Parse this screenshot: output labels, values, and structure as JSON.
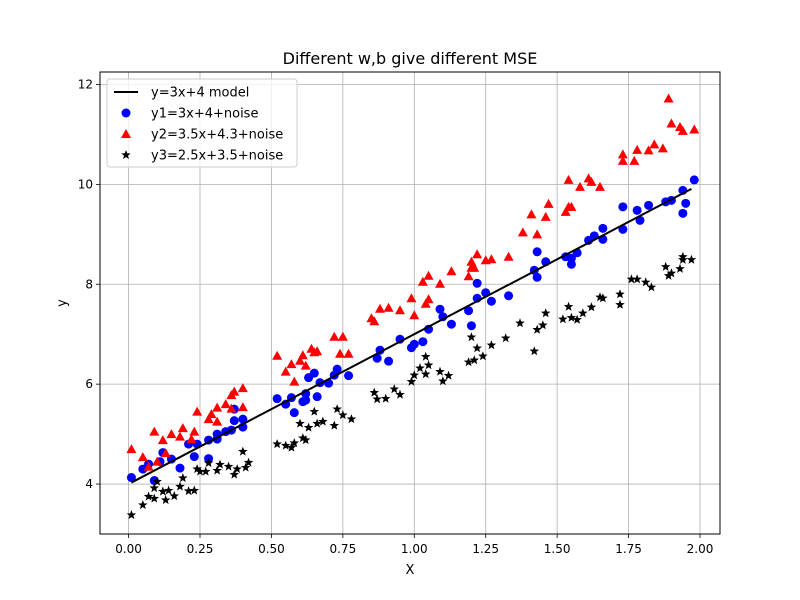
{
  "chart_data": {
    "type": "scatter",
    "title": "Different w,b give different MSE",
    "xlabel": "X",
    "ylabel": "y",
    "xlim": [
      -0.1,
      2.07
    ],
    "ylim": [
      3.0,
      12.25
    ],
    "grid": true,
    "legend_position": "top-left",
    "x_ticks": [
      "0.00",
      "0.25",
      "0.50",
      "0.75",
      "1.00",
      "1.25",
      "1.50",
      "1.75",
      "2.00"
    ],
    "y_ticks": [
      "4",
      "6",
      "8",
      "10",
      "12"
    ],
    "series": [
      {
        "name": "y=3x+4 model",
        "kind": "line",
        "color": "#000000",
        "x": [
          0.01,
          1.97
        ],
        "y": [
          4.03,
          9.91
        ]
      },
      {
        "name": "y1=3x+4+noise",
        "kind": "scatter",
        "marker": "circle",
        "color": "#0000ff",
        "points": [
          [
            0.01,
            4.13
          ],
          [
            0.05,
            4.3
          ],
          [
            0.07,
            4.4
          ],
          [
            0.09,
            4.07
          ],
          [
            0.11,
            4.45
          ],
          [
            0.12,
            4.63
          ],
          [
            0.15,
            4.5
          ],
          [
            0.18,
            4.32
          ],
          [
            0.21,
            4.8
          ],
          [
            0.23,
            4.55
          ],
          [
            0.24,
            4.8
          ],
          [
            0.28,
            4.51
          ],
          [
            0.28,
            4.88
          ],
          [
            0.31,
            4.9
          ],
          [
            0.31,
            5.0
          ],
          [
            0.34,
            5.05
          ],
          [
            0.36,
            5.08
          ],
          [
            0.37,
            5.27
          ],
          [
            0.37,
            5.5
          ],
          [
            0.4,
            5.14
          ],
          [
            0.4,
            5.3
          ],
          [
            0.52,
            5.71
          ],
          [
            0.55,
            5.6
          ],
          [
            0.57,
            5.73
          ],
          [
            0.58,
            5.43
          ],
          [
            0.61,
            5.65
          ],
          [
            0.62,
            5.81
          ],
          [
            0.62,
            5.68
          ],
          [
            0.63,
            6.13
          ],
          [
            0.65,
            6.22
          ],
          [
            0.66,
            5.75
          ],
          [
            0.67,
            6.03
          ],
          [
            0.7,
            6.02
          ],
          [
            0.72,
            6.18
          ],
          [
            0.73,
            6.3
          ],
          [
            0.77,
            6.17
          ],
          [
            0.87,
            6.52
          ],
          [
            0.88,
            6.68
          ],
          [
            0.91,
            6.46
          ],
          [
            0.95,
            6.9
          ],
          [
            0.99,
            6.73
          ],
          [
            1.0,
            6.8
          ],
          [
            1.03,
            6.85
          ],
          [
            1.05,
            7.1
          ],
          [
            1.09,
            7.5
          ],
          [
            1.1,
            7.35
          ],
          [
            1.13,
            7.2
          ],
          [
            1.19,
            7.47
          ],
          [
            1.2,
            7.17
          ],
          [
            1.22,
            8.02
          ],
          [
            1.22,
            7.72
          ],
          [
            1.25,
            7.83
          ],
          [
            1.27,
            7.66
          ],
          [
            1.33,
            7.77
          ],
          [
            1.42,
            8.28
          ],
          [
            1.43,
            8.14
          ],
          [
            1.43,
            8.65
          ],
          [
            1.46,
            8.45
          ],
          [
            1.53,
            8.55
          ],
          [
            1.55,
            8.52
          ],
          [
            1.55,
            8.4
          ],
          [
            1.57,
            8.63
          ],
          [
            1.61,
            8.88
          ],
          [
            1.63,
            8.97
          ],
          [
            1.66,
            9.12
          ],
          [
            1.66,
            8.9
          ],
          [
            1.73,
            9.55
          ],
          [
            1.73,
            9.1
          ],
          [
            1.78,
            9.48
          ],
          [
            1.79,
            9.28
          ],
          [
            1.82,
            9.58
          ],
          [
            1.88,
            9.65
          ],
          [
            1.9,
            9.68
          ],
          [
            1.94,
            9.42
          ],
          [
            1.94,
            9.88
          ],
          [
            1.95,
            9.62
          ],
          [
            1.98,
            10.09
          ]
        ]
      },
      {
        "name": "y2=3.5x+4.3+noise",
        "kind": "scatter",
        "marker": "triangle",
        "color": "#ff0000",
        "points": [
          [
            0.01,
            4.7
          ],
          [
            0.05,
            4.54
          ],
          [
            0.07,
            4.35
          ],
          [
            0.09,
            5.05
          ],
          [
            0.1,
            4.45
          ],
          [
            0.12,
            4.88
          ],
          [
            0.13,
            4.62
          ],
          [
            0.15,
            5.0
          ],
          [
            0.18,
            4.95
          ],
          [
            0.19,
            5.12
          ],
          [
            0.22,
            4.9
          ],
          [
            0.23,
            5.05
          ],
          [
            0.24,
            5.45
          ],
          [
            0.28,
            5.3
          ],
          [
            0.29,
            5.4
          ],
          [
            0.31,
            5.53
          ],
          [
            0.31,
            5.25
          ],
          [
            0.34,
            5.6
          ],
          [
            0.36,
            5.78
          ],
          [
            0.36,
            5.51
          ],
          [
            0.37,
            5.85
          ],
          [
            0.4,
            5.54
          ],
          [
            0.4,
            5.92
          ],
          [
            0.52,
            6.57
          ],
          [
            0.55,
            6.25
          ],
          [
            0.57,
            6.4
          ],
          [
            0.58,
            6.05
          ],
          [
            0.6,
            6.47
          ],
          [
            0.61,
            6.58
          ],
          [
            0.62,
            6.37
          ],
          [
            0.64,
            6.71
          ],
          [
            0.65,
            6.64
          ],
          [
            0.66,
            6.66
          ],
          [
            0.72,
            6.95
          ],
          [
            0.74,
            6.61
          ],
          [
            0.75,
            6.95
          ],
          [
            0.77,
            6.61
          ],
          [
            0.85,
            7.32
          ],
          [
            0.86,
            7.26
          ],
          [
            0.88,
            7.51
          ],
          [
            0.91,
            7.53
          ],
          [
            0.95,
            7.48
          ],
          [
            0.99,
            7.72
          ],
          [
            1.0,
            7.38
          ],
          [
            1.03,
            8.05
          ],
          [
            1.04,
            7.61
          ],
          [
            1.05,
            8.17
          ],
          [
            1.05,
            7.7
          ],
          [
            1.09,
            8.01
          ],
          [
            1.13,
            8.26
          ],
          [
            1.19,
            8.16
          ],
          [
            1.2,
            8.33
          ],
          [
            1.2,
            8.45
          ],
          [
            1.21,
            8.33
          ],
          [
            1.22,
            8.6
          ],
          [
            1.25,
            8.48
          ],
          [
            1.27,
            8.5
          ],
          [
            1.33,
            8.55
          ],
          [
            1.38,
            9.04
          ],
          [
            1.41,
            9.4
          ],
          [
            1.43,
            9.0
          ],
          [
            1.46,
            9.35
          ],
          [
            1.47,
            9.61
          ],
          [
            1.53,
            9.45
          ],
          [
            1.54,
            9.55
          ],
          [
            1.54,
            10.09
          ],
          [
            1.55,
            9.55
          ],
          [
            1.58,
            9.95
          ],
          [
            1.61,
            10.12
          ],
          [
            1.62,
            10.05
          ],
          [
            1.65,
            9.95
          ],
          [
            1.73,
            10.6
          ],
          [
            1.73,
            10.47
          ],
          [
            1.77,
            10.47
          ],
          [
            1.78,
            10.69
          ],
          [
            1.82,
            10.68
          ],
          [
            1.84,
            10.8
          ],
          [
            1.87,
            10.72
          ],
          [
            1.89,
            11.72
          ],
          [
            1.9,
            11.22
          ],
          [
            1.93,
            11.15
          ],
          [
            1.94,
            11.07
          ],
          [
            1.98,
            11.1
          ]
        ]
      },
      {
        "name": "y3=2.5x+3.5+noise",
        "kind": "scatter",
        "marker": "star",
        "color": "#000000",
        "points": [
          [
            0.01,
            3.38
          ],
          [
            0.05,
            3.58
          ],
          [
            0.07,
            3.75
          ],
          [
            0.09,
            3.71
          ],
          [
            0.09,
            3.92
          ],
          [
            0.1,
            4.05
          ],
          [
            0.12,
            3.85
          ],
          [
            0.13,
            3.68
          ],
          [
            0.14,
            3.87
          ],
          [
            0.16,
            3.76
          ],
          [
            0.18,
            3.95
          ],
          [
            0.19,
            4.12
          ],
          [
            0.21,
            3.86
          ],
          [
            0.23,
            3.87
          ],
          [
            0.24,
            4.3
          ],
          [
            0.25,
            4.25
          ],
          [
            0.27,
            4.25
          ],
          [
            0.28,
            4.42
          ],
          [
            0.31,
            4.27
          ],
          [
            0.32,
            4.39
          ],
          [
            0.35,
            4.35
          ],
          [
            0.37,
            4.19
          ],
          [
            0.38,
            4.3
          ],
          [
            0.4,
            4.65
          ],
          [
            0.41,
            4.33
          ],
          [
            0.42,
            4.43
          ],
          [
            0.52,
            4.8
          ],
          [
            0.55,
            4.77
          ],
          [
            0.57,
            4.73
          ],
          [
            0.58,
            4.82
          ],
          [
            0.6,
            5.21
          ],
          [
            0.61,
            4.92
          ],
          [
            0.62,
            4.88
          ],
          [
            0.63,
            5.13
          ],
          [
            0.65,
            5.45
          ],
          [
            0.66,
            5.21
          ],
          [
            0.68,
            5.25
          ],
          [
            0.72,
            5.17
          ],
          [
            0.73,
            5.5
          ],
          [
            0.75,
            5.38
          ],
          [
            0.78,
            5.3
          ],
          [
            0.86,
            5.83
          ],
          [
            0.87,
            5.7
          ],
          [
            0.9,
            5.71
          ],
          [
            0.93,
            5.9
          ],
          [
            0.95,
            5.79
          ],
          [
            0.99,
            6.05
          ],
          [
            1.0,
            6.18
          ],
          [
            1.02,
            6.32
          ],
          [
            1.04,
            6.55
          ],
          [
            1.04,
            6.2
          ],
          [
            1.05,
            6.38
          ],
          [
            1.09,
            6.25
          ],
          [
            1.1,
            6.06
          ],
          [
            1.12,
            6.17
          ],
          [
            1.19,
            6.44
          ],
          [
            1.2,
            6.94
          ],
          [
            1.21,
            6.48
          ],
          [
            1.22,
            6.72
          ],
          [
            1.24,
            6.56
          ],
          [
            1.27,
            6.78
          ],
          [
            1.32,
            6.92
          ],
          [
            1.37,
            7.22
          ],
          [
            1.42,
            6.66
          ],
          [
            1.43,
            7.09
          ],
          [
            1.45,
            7.18
          ],
          [
            1.46,
            7.42
          ],
          [
            1.52,
            7.3
          ],
          [
            1.54,
            7.55
          ],
          [
            1.55,
            7.33
          ],
          [
            1.57,
            7.29
          ],
          [
            1.59,
            7.42
          ],
          [
            1.62,
            7.54
          ],
          [
            1.65,
            7.74
          ],
          [
            1.66,
            7.72
          ],
          [
            1.72,
            7.8
          ],
          [
            1.72,
            7.59
          ],
          [
            1.76,
            8.1
          ],
          [
            1.78,
            8.1
          ],
          [
            1.81,
            8.04
          ],
          [
            1.83,
            7.94
          ],
          [
            1.88,
            8.35
          ],
          [
            1.89,
            8.17
          ],
          [
            1.9,
            8.22
          ],
          [
            1.93,
            8.31
          ],
          [
            1.94,
            8.49
          ],
          [
            1.94,
            8.55
          ],
          [
            1.97,
            8.49
          ]
        ]
      }
    ]
  }
}
